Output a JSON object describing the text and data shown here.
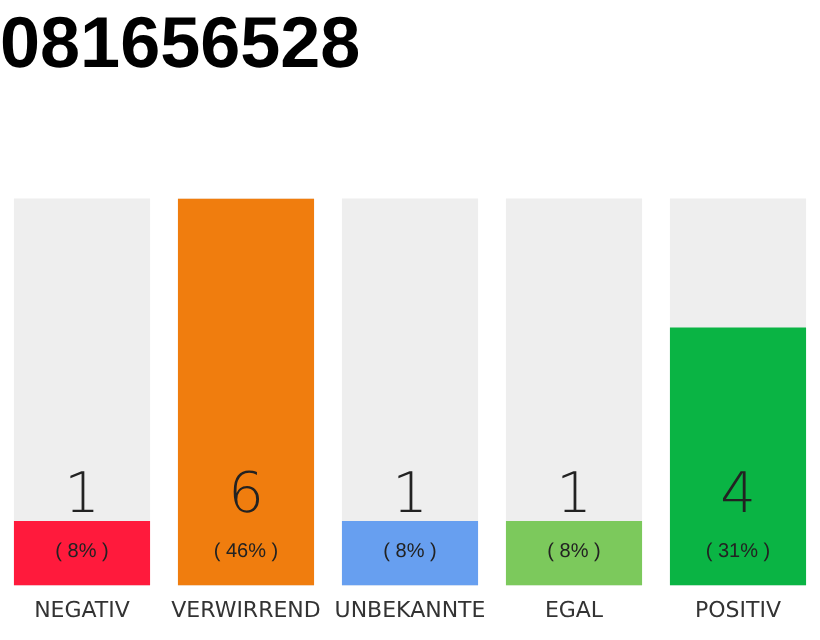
{
  "chart_data": {
    "type": "bar",
    "title": "081656528",
    "categories": [
      "NEGATIV",
      "VERWIRREND",
      "UNBEKANNTE",
      "EGAL",
      "POSITIV"
    ],
    "values": [
      1,
      6,
      1,
      1,
      4
    ],
    "colors": [
      "#ff1a3c",
      "#f07d0e",
      "#679ff0",
      "#7cc95c",
      "#0ab444"
    ],
    "data_labels": true,
    "tick_labels": "x",
    "grid": false,
    "legend": false,
    "annotations": [
      "( 8% )",
      "( 46% )",
      "( 8% )",
      "( 8% )",
      "( 31% )"
    ]
  }
}
